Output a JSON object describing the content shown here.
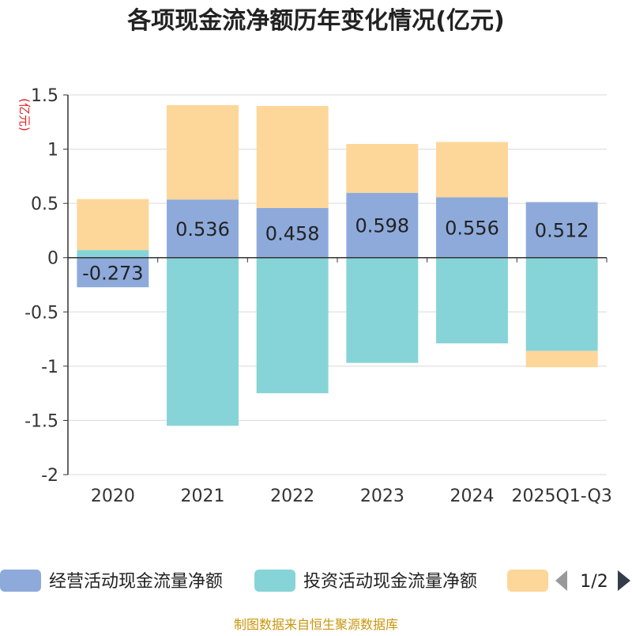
{
  "chart_data": {
    "type": "bar",
    "stacked": true,
    "title": "各项现金流净额历年变化情况(亿元)",
    "ylabel": "(亿元)",
    "xlabel": "",
    "ylim": [
      -2,
      1.5
    ],
    "yticks": [
      1.5,
      1,
      0.5,
      0,
      -0.5,
      -1,
      -1.5,
      -2
    ],
    "ytick_labels": [
      "1.5",
      "1",
      "0.5",
      "0",
      "-0.5",
      "-1",
      "-1.5",
      "-2"
    ],
    "grid": true,
    "categories": [
      "2020",
      "2021",
      "2022",
      "2023",
      "2024",
      "2025Q1-Q3"
    ],
    "series": [
      {
        "name": "经营活动现金流量净额",
        "color": "#8eaadb",
        "values": [
          -0.273,
          0.536,
          0.458,
          0.598,
          0.556,
          0.512
        ],
        "labels": [
          "-0.273",
          "0.536",
          "0.458",
          "0.598",
          "0.556",
          "0.512"
        ]
      },
      {
        "name": "投资活动现金流量净额",
        "color": "#86d4d8",
        "values": [
          0.07,
          -1.55,
          -1.25,
          -0.97,
          -0.79,
          -0.86
        ]
      },
      {
        "name": "",
        "color": "#fdd699",
        "values": [
          0.47,
          0.87,
          0.94,
          0.45,
          0.51,
          -0.15
        ]
      }
    ],
    "legend": {
      "placement": "bottom",
      "page_indicator": "1/2"
    }
  },
  "source": "制图数据来自恒生聚源数据库",
  "colors": {
    "title": "#222222",
    "axis": "#333333",
    "grid": "#d9d9d9",
    "ylabel": "#e02020",
    "source": "#c8960c",
    "arrow_prev": "#999999",
    "arrow_next": "#333d4a"
  }
}
